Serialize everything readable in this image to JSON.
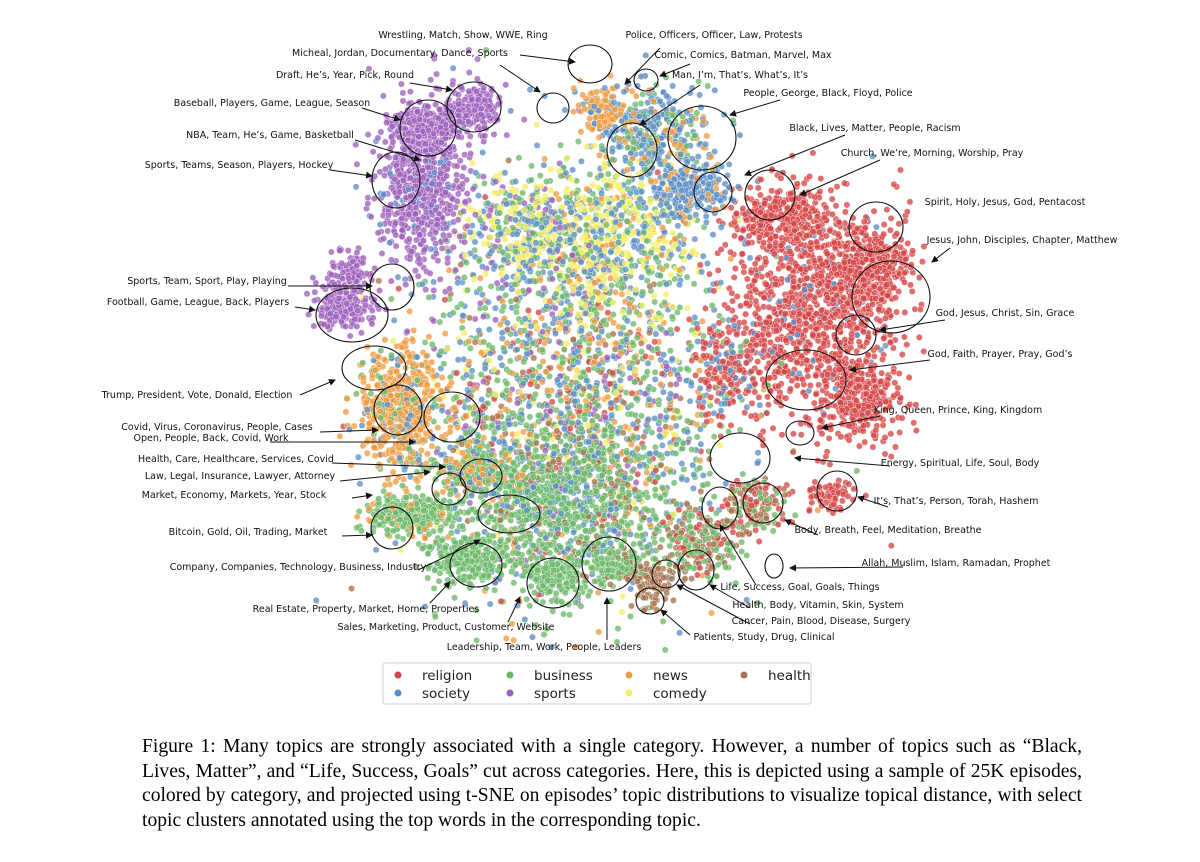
{
  "figure": {
    "caption": "Figure 1: Many topics are strongly associated with a single category. However, a number of topics such as “Black, Lives, Matter”, and “Life, Success, Goals” cut across categories. Here, this is depicted using a sample of 25K episodes, colored by category, and projected using t-SNE on episodes’ topic distributions to visualize topical distance, with select topic clusters annotated using the top words in the corresponding topic."
  },
  "chart_data": {
    "type": "scatter",
    "method": "t-SNE",
    "sample_size": "25K episodes",
    "legend_placement": "bottom-center",
    "grid": false,
    "axes": false,
    "series": [
      {
        "name": "religion",
        "color": "#d64545"
      },
      {
        "name": "business",
        "color": "#6bb868"
      },
      {
        "name": "news",
        "color": "#ef9b3f"
      },
      {
        "name": "health",
        "color": "#a67450"
      },
      {
        "name": "society",
        "color": "#5b8fc7"
      },
      {
        "name": "sports",
        "color": "#9d62bd"
      },
      {
        "name": "comedy",
        "color": "#f5ee60"
      }
    ],
    "annotations": [
      "Wrestling, Match, Show, WWE, Ring",
      "Police, Officers, Officer, Law, Protests",
      "Micheal, Jordan, Documentary, Dance, Sports",
      "Comic, Comics, Batman, Marvel, Max",
      "Draft, He’s, Year, Pick, Round",
      "Man, I’m, That’s, What’s, It’s",
      "People, George, Black, Floyd, Police",
      "Baseball, Players, Game, League, Season",
      "Black, Lives, Matter, People, Racism",
      "NBA, Team, He’s, Game, Basketball",
      "Church, We’re, Morning, Worship, Pray",
      "Sports, Teams, Season, Players, Hockey",
      "Spirit, Holy, Jesus, God, Pentacost",
      "Jesus, John, Disciples, Chapter, Matthew",
      "Sports, Team, Sport, Play, Playing",
      "Football, Game, League, Back, Players",
      "God, Jesus, Christ, Sin, Grace",
      "God, Faith, Prayer, Pray, God’s",
      "Trump, President, Vote, Donald, Election",
      "King, Queen, Prince, King, Kingdom",
      "Covid, Virus, Coronavirus, People, Cases",
      "Open, People, Back, Covid, Work",
      "Health, Care, Healthcare, Services, Covid",
      "Energy, Spiritual, Life, Soul, Body",
      "Law, Legal, Insurance, Lawyer, Attorney",
      "Market, Economy, Markets, Year, Stock",
      "It’s, That’s, Person, Torah, Hashem",
      "Body, Breath, Feel, Meditation, Breathe",
      "Bitcoin, Gold, Oil, Trading, Market",
      "Company, Companies, Technology, Business, Industry",
      "Allah, Muslim, Islam, Ramadan, Prophet",
      "Life, Success, Goal, Goals, Things",
      "Health, Body, Vitamin, Skin, System",
      "Real Estate, Property, Market, Home, Properties",
      "Cancer, Pain, Blood, Disease, Surgery",
      "Sales, Marketing, Product, Customer, Website",
      "Patients, Study, Drug, Clinical",
      "Leadership, Team, Work, People, Leaders"
    ]
  }
}
